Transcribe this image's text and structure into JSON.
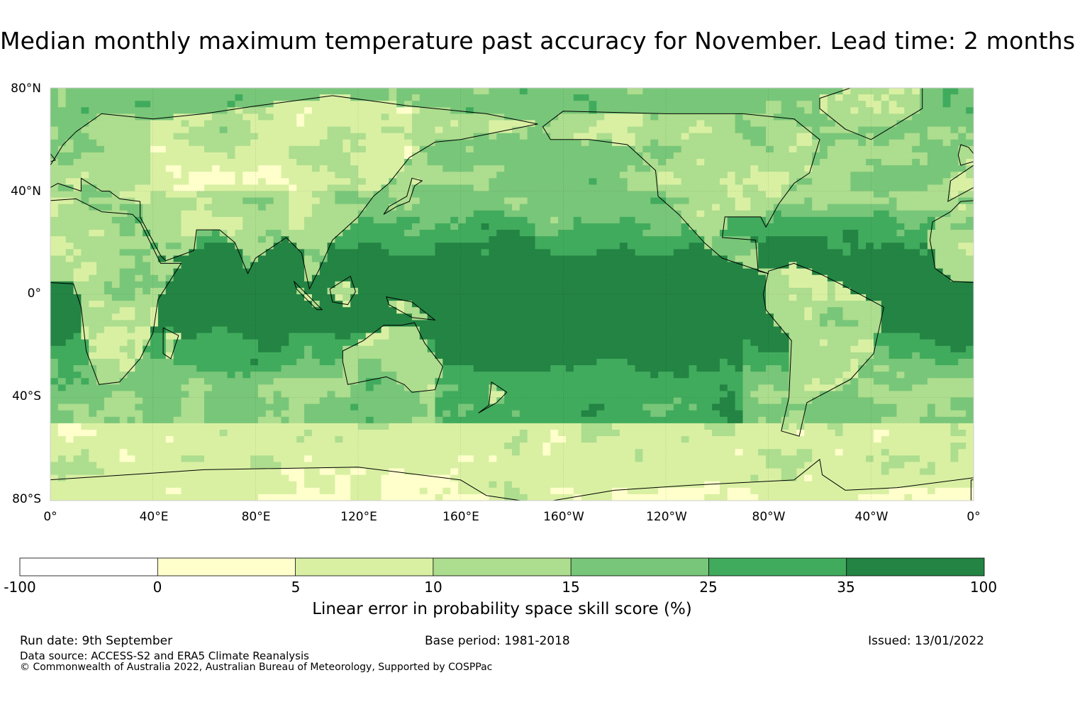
{
  "title": "Median monthly maximum temperature past accuracy for November. Lead time: 2 months",
  "map": {
    "lat_labels": [
      "80°N",
      "40°N",
      "0°",
      "40°S",
      "80°S"
    ],
    "lon_labels": [
      "0°",
      "40°E",
      "80°E",
      "120°E",
      "160°E",
      "160°W",
      "120°W",
      "80°W",
      "40°W",
      "0°"
    ],
    "field": "Linear error in probability space skill score",
    "ocean_dominant_class": 6,
    "colors": [
      "#ffffff",
      "#ffffcc",
      "#d9f0a3",
      "#addd8e",
      "#78c679",
      "#41ab5d",
      "#238443"
    ]
  },
  "colorbar": {
    "ticks": [
      "-100",
      "0",
      "5",
      "10",
      "15",
      "25",
      "35",
      "100"
    ],
    "colors": [
      "#ffffff",
      "#ffffcc",
      "#d9f0a3",
      "#addd8e",
      "#78c679",
      "#41ab5d",
      "#238443"
    ],
    "label": "Linear error in probability space skill score (%)"
  },
  "footer": {
    "run_date": "Run date: 9th September",
    "base_period": "Base period: 1981-2018",
    "issued": "Issued: 13/01/2022",
    "data_source": "Data source: ACCESS-S2 and ERA5 Climate Reanalysis",
    "copyright": "© Commonwealth of Australia 2022, Australian Bureau of Meteorology, Supported by COSPPac"
  }
}
